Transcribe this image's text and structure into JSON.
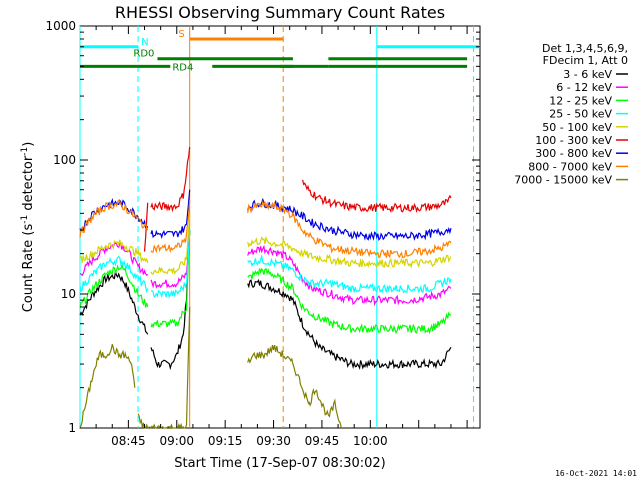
{
  "chart_data": {
    "type": "line",
    "title": "RHESSI Observing Summary Count Rates",
    "xlabel": "Start Time (17-Sep-07 08:30:02)",
    "ylabel_main": "Count Rate (s",
    "ylabel_sup1": "-1",
    "ylabel_mid": " detector",
    "ylabel_sup2": "-1",
    "ylabel_end": ")",
    "y_scale": "log",
    "ylim": [
      1,
      1000
    ],
    "xlim_min": [
      0,
      124
    ],
    "x_tick_labels": [
      "08:45",
      "09:00",
      "09:15",
      "09:30",
      "09:45",
      "10:00"
    ],
    "x_tick_minutes": [
      15,
      30,
      45,
      60,
      75,
      90
    ],
    "y_tick_labels": [
      "1",
      "10",
      "100",
      "1000"
    ],
    "y_tick_values": [
      1,
      10,
      100,
      1000
    ],
    "footer_timestamp": "16-Oct-2021 14:01",
    "legend": {
      "header": [
        "Det 1,3,4,5,6,9,",
        "FDecim 1, Att 0"
      ],
      "entries": [
        {
          "label": "3 - 6 keV",
          "color": "#000000"
        },
        {
          "label": "6 - 12 keV",
          "color": "#ff00ff"
        },
        {
          "label": "12 - 25 keV",
          "color": "#00ff00"
        },
        {
          "label": "25 - 50 keV",
          "color": "#00ffff"
        },
        {
          "label": "50 - 100 keV",
          "color": "#d4d400"
        },
        {
          "label": "100 - 300 keV",
          "color": "#e60000"
        },
        {
          "label": "300 - 800 keV",
          "color": "#0000e6"
        },
        {
          "label": "800 - 7000 keV",
          "color": "#ff8000"
        },
        {
          "label": "7000 - 15000 keV",
          "color": "#808000"
        }
      ]
    },
    "flag_bars": [
      {
        "label": "N",
        "color": "#00ffff",
        "y": 700,
        "segments": [
          [
            0,
            18
          ],
          [
            92,
            124
          ]
        ]
      },
      {
        "label": "RD0",
        "color": "#008000",
        "y": 570,
        "segments": [
          [
            24,
            66
          ],
          [
            77,
            120
          ]
        ]
      },
      {
        "label": "S",
        "color": "#ff8000",
        "y": 800,
        "segments": [
          [
            34,
            63
          ]
        ]
      },
      {
        "label": "RD4",
        "color": "#008000",
        "y": 500,
        "segments": [
          [
            0,
            28
          ],
          [
            41,
            66
          ],
          [
            62,
            77
          ],
          [
            77,
            120
          ]
        ]
      }
    ],
    "vlines": [
      {
        "minute": 0,
        "color": "#00ffff",
        "style": "solid"
      },
      {
        "minute": 18,
        "color": "#00ffff",
        "style": "dashed"
      },
      {
        "minute": 34,
        "color": "#ff8000",
        "style": "solid"
      },
      {
        "minute": 63,
        "color": "#ff8000",
        "style": "dashed"
      },
      {
        "minute": 92,
        "color": "#00ffff",
        "style": "solid"
      },
      {
        "minute": 122,
        "color": "#00ffff",
        "style": "dashed"
      }
    ],
    "series": [
      {
        "name": "3 - 6 keV",
        "color": "#000000",
        "segments": [
          {
            "x": [
              0,
              4,
              8,
              12,
              14,
              18,
              21
            ],
            "y": [
              7,
              10,
              13,
              14,
              12,
              7,
              5
            ]
          },
          {
            "x": [
              22,
              24,
              26,
              28,
              30,
              32,
              33,
              34
            ],
            "y": [
              4,
              3,
              3,
              3,
              3.5,
              5,
              9,
              30
            ]
          },
          {
            "x": [
              52,
              56,
              60,
              64,
              66,
              69,
              71,
              74,
              78,
              84,
              90,
              96,
              102,
              108,
              112,
              115
            ],
            "y": [
              12,
              12,
              11,
              10,
              9,
              6,
              5,
              4,
              3.5,
              3,
              3,
              3,
              3,
              3,
              3,
              4
            ]
          }
        ]
      },
      {
        "name": "6 - 12 keV",
        "color": "#ff00ff",
        "segments": [
          {
            "x": [
              0,
              4,
              8,
              12,
              14,
              18,
              21
            ],
            "y": [
              14,
              18,
              22,
              24,
              22,
              16,
              14
            ]
          },
          {
            "x": [
              22,
              26,
              30,
              33,
              34
            ],
            "y": [
              12,
              12,
              12,
              14,
              30
            ]
          },
          {
            "x": [
              52,
              56,
              60,
              64,
              66,
              69,
              72,
              78,
              84,
              90,
              96,
              102,
              108,
              112,
              115
            ],
            "y": [
              20,
              22,
              21,
              19,
              17,
              13,
              11,
              10,
              9,
              9,
              9,
              9,
              9.5,
              10,
              11
            ]
          }
        ]
      },
      {
        "name": "12 - 25 keV",
        "color": "#00ff00",
        "segments": [
          {
            "x": [
              0,
              4,
              8,
              12,
              14,
              18,
              21
            ],
            "y": [
              8,
              11,
              14,
              16,
              15,
              10,
              8
            ]
          },
          {
            "x": [
              22,
              26,
              30,
              33,
              34
            ],
            "y": [
              6,
              6,
              6,
              8,
              30
            ]
          },
          {
            "x": [
              52,
              56,
              60,
              64,
              66,
              69,
              72,
              78,
              84,
              90,
              96,
              102,
              108,
              112,
              115
            ],
            "y": [
              13,
              15,
              14,
              12,
              11,
              8,
              7,
              6,
              5.5,
              5.5,
              5.5,
              5.5,
              5.5,
              6,
              7
            ]
          }
        ]
      },
      {
        "name": "25 - 50 keV",
        "color": "#00ffff",
        "segments": [
          {
            "x": [
              0,
              4,
              8,
              12,
              14,
              18,
              21
            ],
            "y": [
              11,
              14,
              17,
              18,
              17,
              13,
              11
            ]
          },
          {
            "x": [
              22,
              26,
              30,
              33,
              34
            ],
            "y": [
              10,
              10,
              10,
              12,
              30
            ]
          },
          {
            "x": [
              52,
              56,
              60,
              64,
              66,
              69,
              72,
              78,
              84,
              90,
              96,
              102,
              108,
              112,
              115
            ],
            "y": [
              17,
              18,
              17,
              16,
              15,
              13,
              12,
              12,
              11,
              11,
              11,
              11,
              11,
              12,
              13
            ]
          }
        ]
      },
      {
        "name": "50 - 100 keV",
        "color": "#d4d400",
        "segments": [
          {
            "x": [
              0,
              4,
              8,
              12,
              14,
              18,
              21
            ],
            "y": [
              18,
              20,
              23,
              24,
              23,
              20,
              17
            ]
          },
          {
            "x": [
              22,
              26,
              30,
              33,
              34
            ],
            "y": [
              15,
              15,
              15,
              18,
              40
            ]
          },
          {
            "x": [
              52,
              56,
              60,
              64,
              66,
              69,
              72,
              78,
              84,
              90,
              96,
              102,
              108,
              112,
              115
            ],
            "y": [
              24,
              25,
              24,
              23,
              22,
              20,
              19,
              18,
              17,
              17,
              17,
              17,
              17,
              18,
              19
            ]
          }
        ]
      },
      {
        "name": "100 - 300 keV",
        "color": "#e60000",
        "segments": [
          {
            "x": [
              20,
              21
            ],
            "y": [
              20,
              48
            ]
          },
          {
            "x": [
              22,
              26,
              30,
              32,
              33,
              34
            ],
            "y": [
              45,
              45,
              45,
              55,
              80,
              125
            ]
          },
          {
            "x": [
              69,
              70,
              74,
              80,
              86,
              92,
              98,
              104,
              110,
              114,
              115
            ],
            "y": [
              70,
              62,
              52,
              46,
              44,
              44,
              44,
              44,
              45,
              48,
              52
            ]
          }
        ]
      },
      {
        "name": "300 - 800 keV",
        "color": "#0000e6",
        "segments": [
          {
            "x": [
              0,
              4,
              8,
              12,
              14,
              18,
              21
            ],
            "y": [
              30,
              40,
              46,
              48,
              46,
              38,
              32
            ]
          },
          {
            "x": [
              22,
              26,
              30,
              33,
              34
            ],
            "y": [
              28,
              28,
              28,
              32,
              60
            ]
          },
          {
            "x": [
              52,
              56,
              60,
              64,
              66,
              69,
              72,
              78,
              84,
              90,
              96,
              102,
              108,
              112,
              115
            ],
            "y": [
              45,
              48,
              46,
              44,
              42,
              38,
              34,
              30,
              28,
              27,
              27,
              27,
              28,
              29,
              31
            ]
          }
        ]
      },
      {
        "name": "800 - 7000 keV",
        "color": "#ff8000",
        "segments": [
          {
            "x": [
              0,
              4,
              8,
              12,
              14,
              18,
              21
            ],
            "y": [
              28,
              38,
              45,
              47,
              44,
              36,
              30
            ]
          },
          {
            "x": [
              22,
              26,
              30,
              33,
              34
            ],
            "y": [
              22,
              22,
              22,
              26,
              50
            ]
          },
          {
            "x": [
              52,
              56,
              60,
              64,
              66,
              69,
              72,
              78,
              84,
              90,
              96,
              102,
              108,
              112,
              115
            ],
            "y": [
              43,
              46,
              45,
              42,
              38,
              30,
              26,
              22,
              21,
              20,
              20,
              20,
              21,
              22,
              24
            ]
          }
        ]
      },
      {
        "name": "7000 - 15000 keV",
        "color": "#808000",
        "segments": [
          {
            "x": [
              0,
              4,
              6,
              8,
              10,
              12,
              14,
              16,
              17
            ],
            "y": [
              1,
              2.5,
              3.5,
              3.5,
              4,
              3.5,
              3.5,
              3,
              2
            ]
          },
          {
            "x": [
              18,
              20,
              22,
              26,
              30,
              33,
              34
            ],
            "y": [
              1.2,
              1,
              1,
              1,
              1,
              1,
              8
            ]
          },
          {
            "x": [
              52,
              54,
              57,
              60,
              63,
              66,
              69,
              71
            ],
            "y": [
              3,
              3.5,
              3.5,
              4,
              3.5,
              3,
              2,
              1.5
            ]
          },
          {
            "x": [
              71,
              73,
              75,
              77,
              79,
              81
            ],
            "y": [
              1.5,
              2,
              1.5,
              1.2,
              1.5,
              1
            ]
          }
        ]
      }
    ]
  }
}
